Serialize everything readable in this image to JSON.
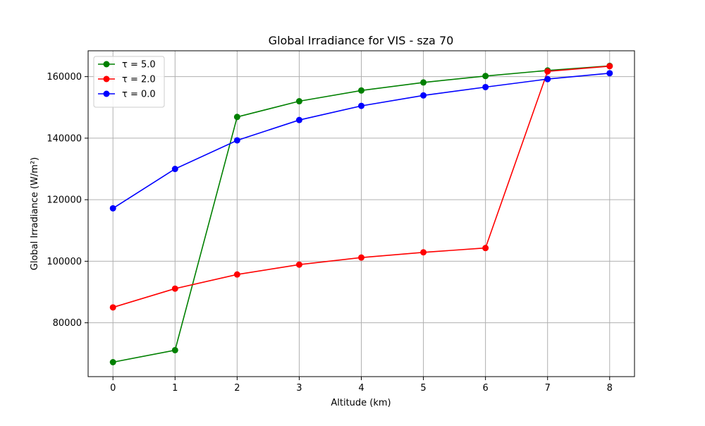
{
  "chart_data": {
    "type": "line",
    "title": "Global Irradiance for VIS - sza 70",
    "xlabel": "Altitude (km)",
    "ylabel": "Global Irradiance (W/m²)",
    "x": [
      0,
      1,
      2,
      3,
      4,
      5,
      6,
      7,
      8
    ],
    "xticks": [
      "0",
      "1",
      "2",
      "3",
      "4",
      "5",
      "6",
      "7",
      "8"
    ],
    "xlim": [
      -0.4,
      8.4
    ],
    "yticks": [
      "80000",
      "100000",
      "120000",
      "140000",
      "160000"
    ],
    "ytick_values": [
      80000,
      100000,
      120000,
      140000,
      160000
    ],
    "ylim": [
      62500,
      168400
    ],
    "grid": true,
    "legend_position": "upper-left",
    "marker": "circle",
    "series": [
      {
        "name": "τ = 5.0",
        "color": "#008000",
        "values": [
          67200,
          71100,
          146900,
          152000,
          155500,
          158100,
          160200,
          162000,
          163500
        ]
      },
      {
        "name": "τ = 2.0",
        "color": "#ff0000",
        "values": [
          85000,
          91100,
          95700,
          98900,
          101200,
          102900,
          104300,
          161700,
          163400
        ]
      },
      {
        "name": "τ = 0.0",
        "color": "#0000ff",
        "values": [
          117200,
          130000,
          139300,
          145900,
          150500,
          153900,
          156600,
          159200,
          161100
        ]
      }
    ]
  }
}
